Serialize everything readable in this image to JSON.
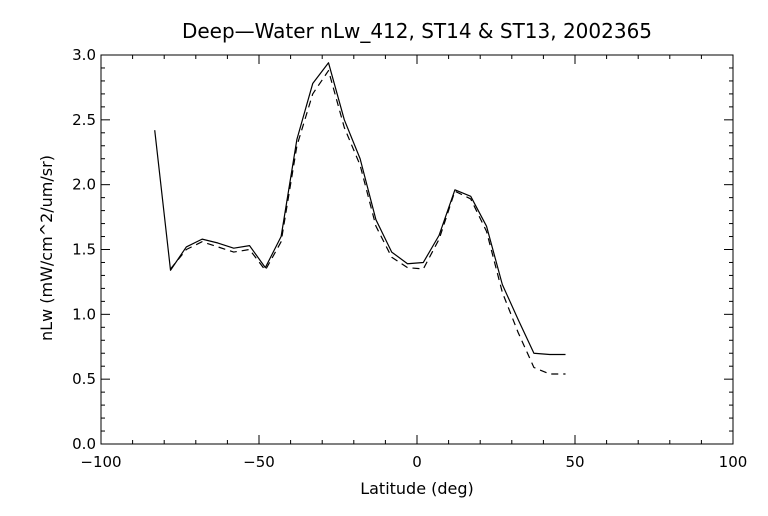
{
  "chart_data": {
    "type": "line",
    "title": "Deep—Water nLw_412, ST14 & ST13, 2002365",
    "xlabel": "Latitude (deg)",
    "ylabel": "nLw (mW/cm^2/um/sr)",
    "xlim": [
      -100,
      100
    ],
    "ylim": [
      0.0,
      3.0
    ],
    "x_ticks": [
      -100,
      -50,
      0,
      50,
      100
    ],
    "x_tick_labels": [
      "−100",
      "−50",
      "0",
      "50",
      "100"
    ],
    "y_ticks": [
      0.0,
      0.5,
      1.0,
      1.5,
      2.0,
      2.5,
      3.0
    ],
    "y_tick_labels": [
      "0.0",
      "0.5",
      "1.0",
      "1.5",
      "2.0",
      "2.5",
      "3.0"
    ],
    "grid": false,
    "colors": {
      "line": "#000000",
      "background": "#ffffff"
    },
    "series": [
      {
        "style": "solid",
        "x": [
          -83,
          -78,
          -73,
          -68,
          -63,
          -58,
          -53,
          -48,
          -43,
          -38,
          -33,
          -28,
          -23,
          -18,
          -13,
          -8,
          -3,
          2,
          7,
          12,
          17,
          22,
          27,
          32,
          37,
          42,
          47
        ],
        "y": [
          2.42,
          1.34,
          1.52,
          1.58,
          1.55,
          1.51,
          1.53,
          1.36,
          1.6,
          2.35,
          2.78,
          2.94,
          2.5,
          2.2,
          1.73,
          1.48,
          1.39,
          1.4,
          1.61,
          1.96,
          1.91,
          1.68,
          1.23,
          0.96,
          0.7,
          0.69,
          0.69
        ]
      },
      {
        "style": "dashed",
        "x": [
          -78,
          -73,
          -68,
          -63,
          -58,
          -53,
          -48,
          -43,
          -38,
          -33,
          -28,
          -23,
          -18,
          -13,
          -8,
          -3,
          2,
          7,
          12,
          17,
          22,
          27,
          32,
          37,
          42,
          47
        ],
        "y": [
          1.35,
          1.5,
          1.56,
          1.52,
          1.48,
          1.5,
          1.34,
          1.56,
          2.3,
          2.7,
          2.88,
          2.44,
          2.15,
          1.68,
          1.44,
          1.36,
          1.35,
          1.58,
          1.95,
          1.89,
          1.64,
          1.17,
          0.86,
          0.59,
          0.54,
          0.54
        ]
      }
    ]
  }
}
